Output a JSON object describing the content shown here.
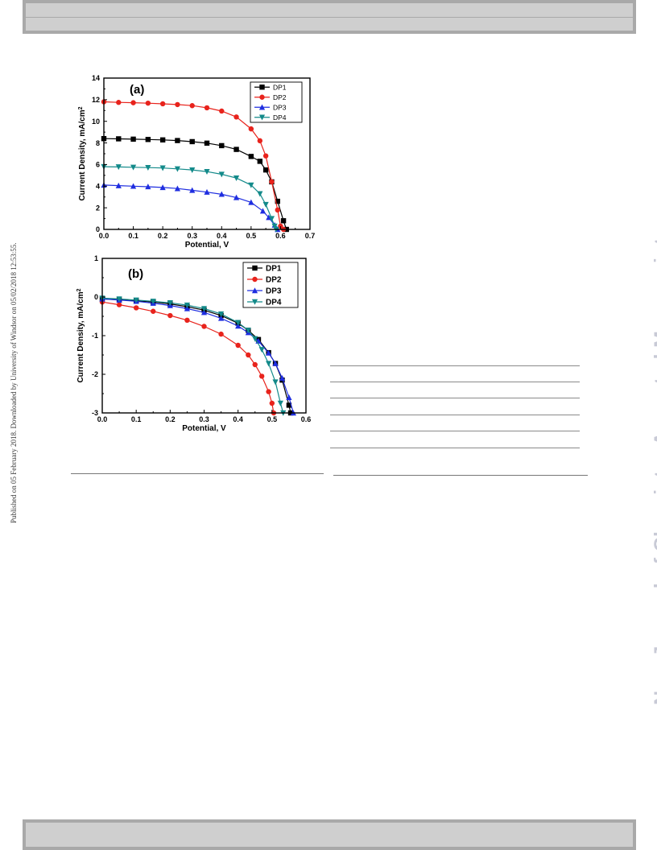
{
  "sidebar_note": "Published on 05 February 2018. Downloaded by University of Windsor on 05/02/2018 12:53:55.",
  "watermark": "New Journal of Chemistry Accepted Manuscript",
  "colors": {
    "DP1": "#000000",
    "DP2": "#e8231c",
    "DP3": "#1f2ee0",
    "DP4": "#138a8a"
  },
  "chart_data": [
    {
      "panel": "(a)",
      "type": "line",
      "xlabel": "Potential, V",
      "ylabel": "Current Density, mA/cm",
      "ylabel_sup": "2",
      "xlim": [
        0.0,
        0.7
      ],
      "ylim": [
        0,
        14
      ],
      "xticks": [
        "0.0",
        "0.1",
        "0.2",
        "0.3",
        "0.4",
        "0.5",
        "0.6",
        "0.7"
      ],
      "yticks": [
        "0",
        "2",
        "4",
        "6",
        "8",
        "10",
        "12",
        "14"
      ],
      "legend": [
        "DP1",
        "DP2",
        "DP3",
        "DP4"
      ],
      "legend_position": "top-right",
      "series": [
        {
          "name": "DP1",
          "color": "#000000",
          "marker": "square",
          "points": [
            [
              0,
              8.4
            ],
            [
              0.05,
              8.38
            ],
            [
              0.1,
              8.35
            ],
            [
              0.15,
              8.32
            ],
            [
              0.2,
              8.28
            ],
            [
              0.25,
              8.22
            ],
            [
              0.3,
              8.12
            ],
            [
              0.35,
              7.98
            ],
            [
              0.4,
              7.75
            ],
            [
              0.45,
              7.4
            ],
            [
              0.5,
              6.75
            ],
            [
              0.53,
              6.3
            ],
            [
              0.55,
              5.5
            ],
            [
              0.57,
              4.4
            ],
            [
              0.59,
              2.6
            ],
            [
              0.61,
              0.8
            ],
            [
              0.62,
              0
            ]
          ]
        },
        {
          "name": "DP2",
          "color": "#e8231c",
          "marker": "circle",
          "points": [
            [
              0,
              11.8
            ],
            [
              0.05,
              11.75
            ],
            [
              0.1,
              11.72
            ],
            [
              0.15,
              11.68
            ],
            [
              0.2,
              11.62
            ],
            [
              0.25,
              11.55
            ],
            [
              0.3,
              11.45
            ],
            [
              0.35,
              11.25
            ],
            [
              0.4,
              10.95
            ],
            [
              0.45,
              10.4
            ],
            [
              0.5,
              9.3
            ],
            [
              0.53,
              8.2
            ],
            [
              0.55,
              6.8
            ],
            [
              0.57,
              4.4
            ],
            [
              0.59,
              1.8
            ],
            [
              0.6,
              0.3
            ],
            [
              0.61,
              0
            ]
          ]
        },
        {
          "name": "DP3",
          "color": "#1f2ee0",
          "marker": "triangle-up",
          "points": [
            [
              0,
              4.1
            ],
            [
              0.05,
              4.05
            ],
            [
              0.1,
              4.0
            ],
            [
              0.15,
              3.95
            ],
            [
              0.2,
              3.88
            ],
            [
              0.25,
              3.78
            ],
            [
              0.3,
              3.62
            ],
            [
              0.35,
              3.45
            ],
            [
              0.4,
              3.25
            ],
            [
              0.45,
              2.95
            ],
            [
              0.5,
              2.5
            ],
            [
              0.54,
              1.7
            ],
            [
              0.56,
              1.1
            ],
            [
              0.58,
              0.4
            ],
            [
              0.59,
              0
            ]
          ]
        },
        {
          "name": "DP4",
          "color": "#138a8a",
          "marker": "triangle-down",
          "points": [
            [
              0,
              5.8
            ],
            [
              0.05,
              5.78
            ],
            [
              0.1,
              5.75
            ],
            [
              0.15,
              5.72
            ],
            [
              0.2,
              5.68
            ],
            [
              0.25,
              5.6
            ],
            [
              0.3,
              5.5
            ],
            [
              0.35,
              5.35
            ],
            [
              0.4,
              5.1
            ],
            [
              0.45,
              4.75
            ],
            [
              0.5,
              4.1
            ],
            [
              0.53,
              3.3
            ],
            [
              0.55,
              2.3
            ],
            [
              0.57,
              1.0
            ],
            [
              0.58,
              0.3
            ],
            [
              0.585,
              0
            ]
          ]
        }
      ]
    },
    {
      "panel": "(b)",
      "type": "line",
      "xlabel": "Potential, V",
      "ylabel": "Current Density, mA/cm",
      "ylabel_sup": "2",
      "xlim": [
        0.0,
        0.6
      ],
      "ylim": [
        -3,
        1
      ],
      "xticks": [
        "0.0",
        "0.1",
        "0.2",
        "0.3",
        "0.4",
        "0.5",
        "0.6"
      ],
      "yticks": [
        "-3",
        "-2",
        "-1",
        "0",
        "1"
      ],
      "legend": [
        "DP1",
        "DP2",
        "DP3",
        "DP4"
      ],
      "legend_position": "top-right",
      "series": [
        {
          "name": "DP1",
          "color": "#000000",
          "marker": "square",
          "points": [
            [
              0,
              -0.05
            ],
            [
              0.05,
              -0.07
            ],
            [
              0.1,
              -0.1
            ],
            [
              0.15,
              -0.13
            ],
            [
              0.2,
              -0.18
            ],
            [
              0.25,
              -0.25
            ],
            [
              0.3,
              -0.34
            ],
            [
              0.35,
              -0.48
            ],
            [
              0.4,
              -0.68
            ],
            [
              0.43,
              -0.86
            ],
            [
              0.46,
              -1.1
            ],
            [
              0.49,
              -1.44
            ],
            [
              0.51,
              -1.72
            ],
            [
              0.53,
              -2.15
            ],
            [
              0.55,
              -2.8
            ],
            [
              0.555,
              -3.0
            ]
          ]
        },
        {
          "name": "DP2",
          "color": "#e8231c",
          "marker": "circle",
          "points": [
            [
              0,
              -0.13
            ],
            [
              0.05,
              -0.2
            ],
            [
              0.1,
              -0.28
            ],
            [
              0.15,
              -0.37
            ],
            [
              0.2,
              -0.48
            ],
            [
              0.25,
              -0.6
            ],
            [
              0.3,
              -0.76
            ],
            [
              0.35,
              -0.96
            ],
            [
              0.4,
              -1.25
            ],
            [
              0.43,
              -1.5
            ],
            [
              0.45,
              -1.75
            ],
            [
              0.47,
              -2.05
            ],
            [
              0.49,
              -2.45
            ],
            [
              0.5,
              -2.75
            ],
            [
              0.505,
              -3.0
            ]
          ]
        },
        {
          "name": "DP3",
          "color": "#1f2ee0",
          "marker": "triangle-up",
          "points": [
            [
              0,
              -0.05
            ],
            [
              0.05,
              -0.08
            ],
            [
              0.1,
              -0.11
            ],
            [
              0.15,
              -0.16
            ],
            [
              0.2,
              -0.22
            ],
            [
              0.25,
              -0.3
            ],
            [
              0.3,
              -0.4
            ],
            [
              0.35,
              -0.55
            ],
            [
              0.4,
              -0.75
            ],
            [
              0.43,
              -0.92
            ],
            [
              0.46,
              -1.14
            ],
            [
              0.49,
              -1.45
            ],
            [
              0.51,
              -1.72
            ],
            [
              0.53,
              -2.1
            ],
            [
              0.55,
              -2.6
            ],
            [
              0.563,
              -3.0
            ]
          ]
        },
        {
          "name": "DP4",
          "color": "#138a8a",
          "marker": "triangle-down",
          "points": [
            [
              0,
              -0.03
            ],
            [
              0.05,
              -0.05
            ],
            [
              0.1,
              -0.08
            ],
            [
              0.15,
              -0.11
            ],
            [
              0.2,
              -0.15
            ],
            [
              0.25,
              -0.21
            ],
            [
              0.3,
              -0.3
            ],
            [
              0.35,
              -0.44
            ],
            [
              0.4,
              -0.66
            ],
            [
              0.43,
              -0.86
            ],
            [
              0.45,
              -1.08
            ],
            [
              0.47,
              -1.36
            ],
            [
              0.49,
              -1.72
            ],
            [
              0.51,
              -2.2
            ],
            [
              0.525,
              -2.75
            ],
            [
              0.533,
              -3.0
            ]
          ]
        }
      ]
    }
  ]
}
